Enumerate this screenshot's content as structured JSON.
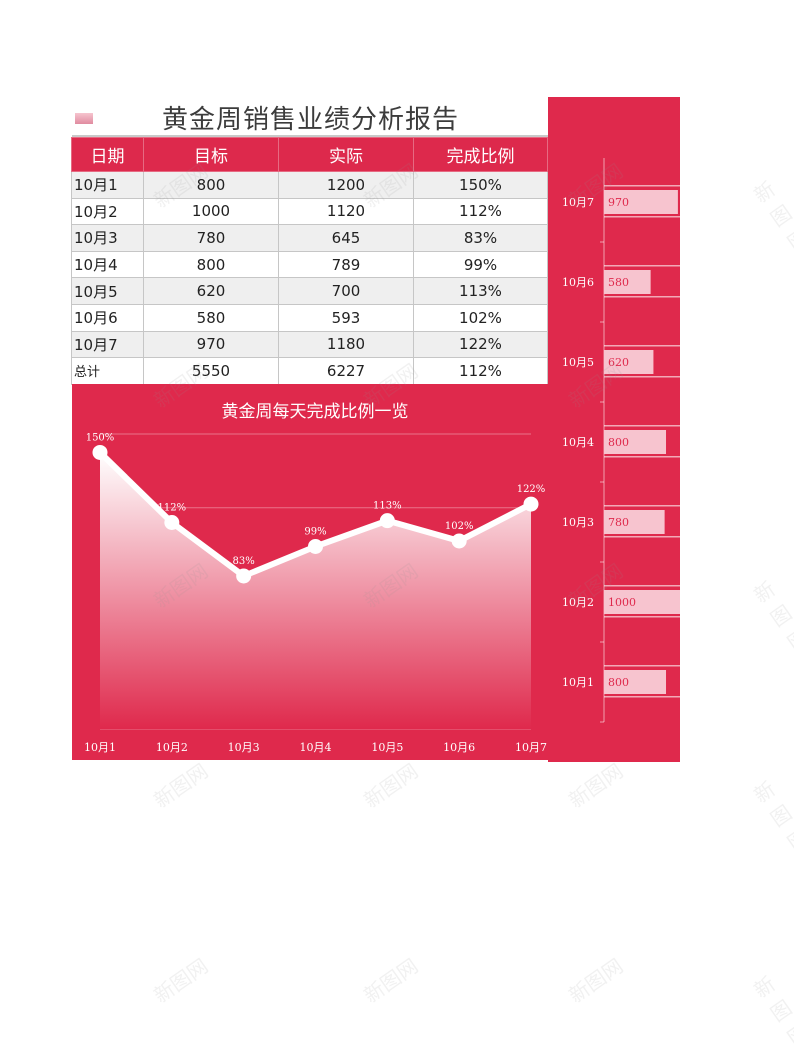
{
  "report": {
    "title": "黄金周销售业绩分析报告"
  },
  "table": {
    "headers": [
      "日期",
      "目标",
      "实际",
      "完成比例"
    ],
    "rows": [
      [
        "10月1",
        "800",
        "1200",
        "150%"
      ],
      [
        "10月2",
        "1000",
        "1120",
        "112%"
      ],
      [
        "10月3",
        "780",
        "645",
        "83%"
      ],
      [
        "10月4",
        "800",
        "789",
        "99%"
      ],
      [
        "10月5",
        "620",
        "700",
        "113%"
      ],
      [
        "10月6",
        "580",
        "593",
        "102%"
      ],
      [
        "10月7",
        "970",
        "1180",
        "122%"
      ]
    ],
    "total": [
      "总计",
      "5550",
      "6227",
      "112%"
    ]
  },
  "watermark": "新图网",
  "chart_data": [
    {
      "type": "area",
      "title": "黄金周每天完成比例一览",
      "categories": [
        "10月1",
        "10月2",
        "10月3",
        "10月4",
        "10月5",
        "10月6",
        "10月7"
      ],
      "values": [
        150,
        112,
        83,
        99,
        113,
        102,
        122
      ],
      "data_labels": [
        "150%",
        "112%",
        "83%",
        "99%",
        "113%",
        "102%",
        "122%"
      ],
      "ylim": [
        0,
        160
      ],
      "grid": true,
      "colors": {
        "background": "#df294c",
        "line": "#ffffff",
        "fill_top": "#ffffff",
        "fill_bottom": "#df294c"
      }
    },
    {
      "type": "bar",
      "orientation": "horizontal",
      "categories": [
        "10月1",
        "10月2",
        "10月3",
        "10月4",
        "10月5",
        "10月6",
        "10月7"
      ],
      "values": [
        800,
        1000,
        780,
        800,
        620,
        580,
        970
      ],
      "data_labels": [
        "800",
        "1000",
        "780",
        "800",
        "620",
        "580",
        "970"
      ],
      "colors": {
        "background": "#df294c",
        "bar": "#f7c4cf",
        "label": "#df294c",
        "axis_text": "#ffffff"
      }
    }
  ]
}
